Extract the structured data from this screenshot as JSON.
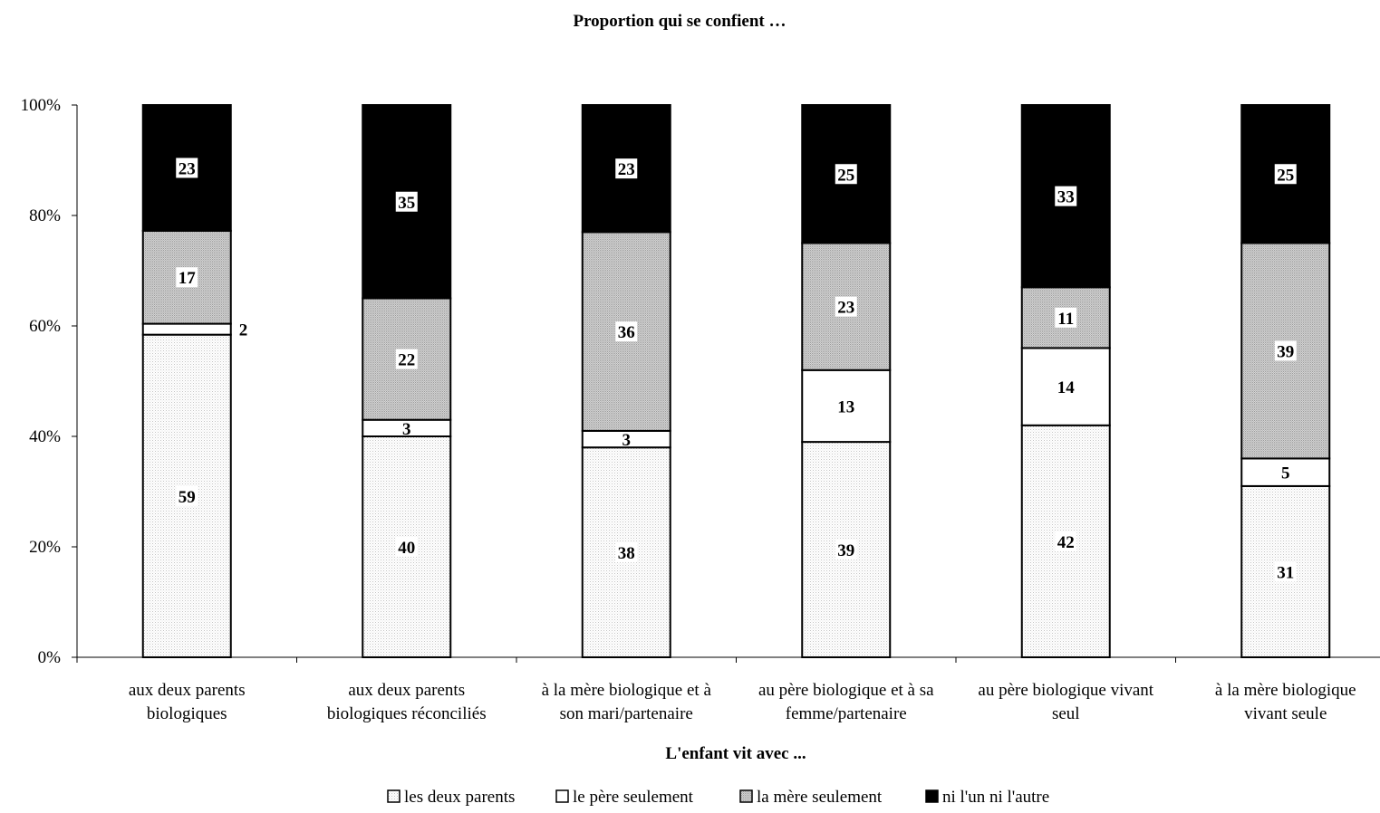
{
  "chart_data": {
    "type": "bar",
    "stacked": true,
    "title": "Proportion qui se confient …",
    "xlabel": "L'enfant vit avec ...",
    "ylabel": "",
    "ylim": [
      0,
      100
    ],
    "yticks": [
      "0%",
      "20%",
      "40%",
      "60%",
      "80%",
      "100%"
    ],
    "categories": [
      [
        "aux deux parents",
        "biologiques"
      ],
      [
        "aux deux parents",
        "biologiques réconciliés"
      ],
      [
        "à la mère biologique et à",
        "son mari/partenaire"
      ],
      [
        "au père biologique et à sa",
        "femme/partenaire"
      ],
      [
        "au père biologique vivant",
        "seul"
      ],
      [
        "à la mère biologique",
        "vivant seule"
      ]
    ],
    "series": [
      {
        "name": "les deux parents",
        "values": [
          59,
          40,
          38,
          39,
          42,
          31
        ],
        "fill": "dots-light"
      },
      {
        "name": "le père seulement",
        "values": [
          2,
          3,
          3,
          13,
          14,
          5
        ],
        "fill": "white"
      },
      {
        "name": "la mère seulement",
        "values": [
          17,
          22,
          36,
          23,
          11,
          39
        ],
        "fill": "dots-gray"
      },
      {
        "name": "ni l'un ni l'autre",
        "values": [
          23,
          35,
          23,
          25,
          33,
          25
        ],
        "fill": "black"
      }
    ],
    "legend_position": "bottom",
    "grid": false
  }
}
